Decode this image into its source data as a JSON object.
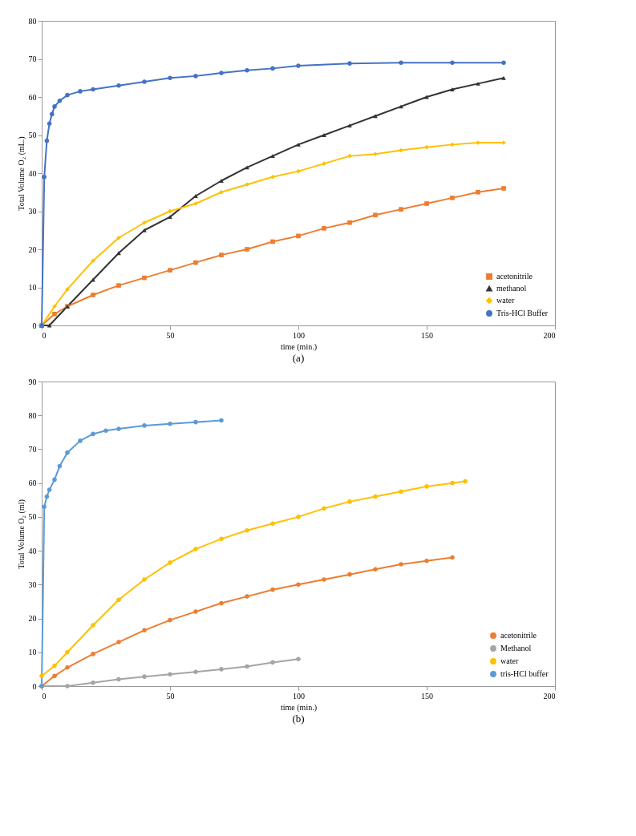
{
  "chart_data": [
    {
      "type": "line",
      "xlabel": "time (min.)",
      "ylabel": "Total Volume O₂ (mL.)",
      "xlim": [
        0,
        200
      ],
      "xticks": [
        0,
        50,
        100,
        150,
        200
      ],
      "ylim": [
        0,
        80
      ],
      "yticks": [
        0,
        10,
        20,
        30,
        40,
        50,
        60,
        70,
        80
      ],
      "grid": false,
      "legend": "bottom right",
      "annotations": [
        "(a)"
      ],
      "series": [
        {
          "name": "acetonitrile",
          "color": "#ed7d31",
          "marker": "square",
          "x": [
            0,
            5,
            10,
            20,
            30,
            40,
            50,
            60,
            70,
            80,
            90,
            100,
            110,
            120,
            130,
            140,
            150,
            160,
            170,
            180
          ],
          "values": [
            0,
            3,
            5,
            8,
            10.5,
            12.5,
            14.5,
            16.5,
            18.5,
            20,
            22,
            23.5,
            25.5,
            27,
            29,
            30.5,
            32,
            33.5,
            35,
            36
          ]
        },
        {
          "name": "methanol",
          "color": "#333333",
          "marker": "triangle",
          "x": [
            0,
            3,
            10,
            20,
            30,
            40,
            50,
            60,
            70,
            80,
            90,
            100,
            110,
            120,
            130,
            140,
            150,
            160,
            170,
            180
          ],
          "values": [
            0,
            0,
            5,
            12,
            19,
            25,
            28.5,
            34,
            38,
            41.5,
            44.5,
            47.5,
            50,
            52.5,
            55,
            57.5,
            60,
            62,
            63.5,
            65
          ]
        },
        {
          "name": "water",
          "color": "#ffc000",
          "marker": "diamond",
          "x": [
            0,
            5,
            10,
            20,
            30,
            40,
            50,
            60,
            70,
            80,
            90,
            100,
            110,
            120,
            130,
            140,
            150,
            160,
            170,
            180
          ],
          "values": [
            0,
            5,
            9.5,
            17,
            23,
            27,
            30,
            32,
            35,
            37,
            39,
            40.5,
            42.5,
            44.5,
            45,
            46,
            46.8,
            47.5,
            48,
            48
          ]
        },
        {
          "name": "Tris-HCl Buffer",
          "color": "#4472c4",
          "marker": "circle",
          "x": [
            0,
            1,
            2,
            3,
            4,
            5,
            7,
            10,
            15,
            20,
            30,
            40,
            50,
            60,
            70,
            80,
            90,
            100,
            120,
            140,
            160,
            180
          ],
          "values": [
            0,
            39,
            48.5,
            53,
            55.5,
            57.5,
            59,
            60.5,
            61.5,
            62,
            63,
            64,
            65,
            65.5,
            66.3,
            67,
            67.5,
            68.2,
            68.8,
            69,
            69,
            69
          ]
        }
      ]
    },
    {
      "type": "line",
      "xlabel": "time (min.)",
      "ylabel": "Total Volume O₂ (ml)",
      "xlim": [
        0,
        200
      ],
      "xticks": [
        0,
        50,
        100,
        150,
        200
      ],
      "ylim": [
        0,
        90
      ],
      "yticks": [
        0,
        10,
        20,
        30,
        40,
        50,
        60,
        70,
        80,
        90
      ],
      "grid": false,
      "legend": "bottom right",
      "annotations": [
        "(b)"
      ],
      "series": [
        {
          "name": "acetonitrile",
          "color": "#ed7d31",
          "marker": "circle",
          "x": [
            0,
            5,
            10,
            20,
            30,
            40,
            50,
            60,
            70,
            80,
            90,
            100,
            110,
            120,
            130,
            140,
            150,
            160
          ],
          "values": [
            0,
            3,
            5.5,
            9.5,
            13,
            16.5,
            19.5,
            22,
            24.5,
            26.5,
            28.5,
            30,
            31.5,
            33,
            34.5,
            36,
            37,
            38
          ]
        },
        {
          "name": "Methanol",
          "color": "#a5a5a5",
          "marker": "circle",
          "x": [
            0,
            10,
            20,
            30,
            40,
            50,
            60,
            70,
            80,
            90,
            100
          ],
          "values": [
            0,
            0,
            1,
            2,
            2.8,
            3.5,
            4.2,
            5,
            5.8,
            7,
            8
          ]
        },
        {
          "name": "water",
          "color": "#ffc000",
          "marker": "circle",
          "x": [
            0,
            5,
            10,
            20,
            30,
            40,
            50,
            60,
            70,
            80,
            90,
            100,
            110,
            120,
            130,
            140,
            150,
            160,
            165
          ],
          "values": [
            3,
            6,
            10,
            18,
            25.5,
            31.5,
            36.5,
            40.5,
            43.5,
            46,
            48,
            50,
            52.5,
            54.5,
            56,
            57.5,
            59,
            60,
            60.5
          ]
        },
        {
          "name": "tris-HCl buffer",
          "color": "#5b9bd5",
          "marker": "circle",
          "x": [
            0,
            1,
            2,
            3,
            5,
            7,
            10,
            15,
            20,
            25,
            30,
            40,
            50,
            60,
            70
          ],
          "values": [
            0,
            53,
            56,
            58,
            61,
            65,
            69,
            72.5,
            74.5,
            75.5,
            76,
            77,
            77.5,
            78,
            78.5
          ]
        }
      ]
    }
  ]
}
